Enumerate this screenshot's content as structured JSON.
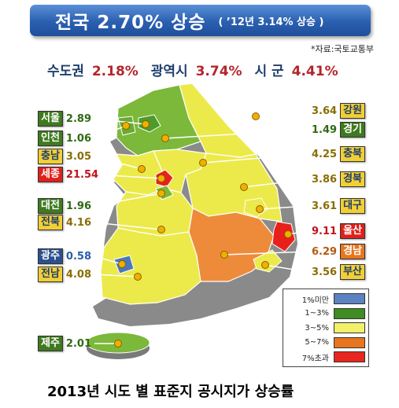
{
  "title": {
    "main": "전국  2.70% 상승",
    "sub": "( ’12년 3.14% 상승 )"
  },
  "source": "*자료:국토교통부",
  "summary": [
    {
      "label": "수도권",
      "value": "2.18%"
    },
    {
      "label": "광역시",
      "value": "3.74%"
    },
    {
      "label": "시 군",
      "value": "4.41%"
    }
  ],
  "regions": [
    {
      "name": "서울",
      "value": "2.89",
      "cls": "green"
    },
    {
      "name": "인천",
      "value": "1.06",
      "cls": "green"
    },
    {
      "name": "충남",
      "value": "3.05",
      "cls": "yellow"
    },
    {
      "name": "세종",
      "value": "21.54",
      "cls": "red"
    },
    {
      "name": "대전",
      "value": "1.96",
      "cls": "green"
    },
    {
      "name": "전북",
      "value": "4.16",
      "cls": "yellow"
    },
    {
      "name": "광주",
      "value": "0.58",
      "cls": "blue"
    },
    {
      "name": "전남",
      "value": "4.08",
      "cls": "yellow"
    },
    {
      "name": "제주",
      "value": "2.01",
      "cls": "green"
    },
    {
      "name": "강원",
      "value": "3.64",
      "cls": "yellow"
    },
    {
      "name": "경기",
      "value": "1.49",
      "cls": "green"
    },
    {
      "name": "충북",
      "value": "4.25",
      "cls": "yellow"
    },
    {
      "name": "경북",
      "value": "3.86",
      "cls": "yellow"
    },
    {
      "name": "대구",
      "value": "3.61",
      "cls": "yellow"
    },
    {
      "name": "울산",
      "value": "9.11",
      "cls": "red"
    },
    {
      "name": "경남",
      "value": "6.29",
      "cls": "orange"
    },
    {
      "name": "부산",
      "value": "3.56",
      "cls": "yellow"
    }
  ],
  "legend": [
    {
      "label": "1%미만",
      "color": "#5b82c2"
    },
    {
      "label": "1~3%",
      "color": "#3f8c22"
    },
    {
      "label": "3~5%",
      "color": "#f3f06a"
    },
    {
      "label": "5~7%",
      "color": "#e8761f"
    },
    {
      "label": "7%초과",
      "color": "#e8261e"
    }
  ],
  "colors": {
    "green": "#7cb83a",
    "yellow": "#ecea4a",
    "orange": "#ee8b3a",
    "red": "#e8201c",
    "blue": "#4b78b8"
  },
  "caption": "2013년 시도 별 표준지 공시지가 상승률"
}
